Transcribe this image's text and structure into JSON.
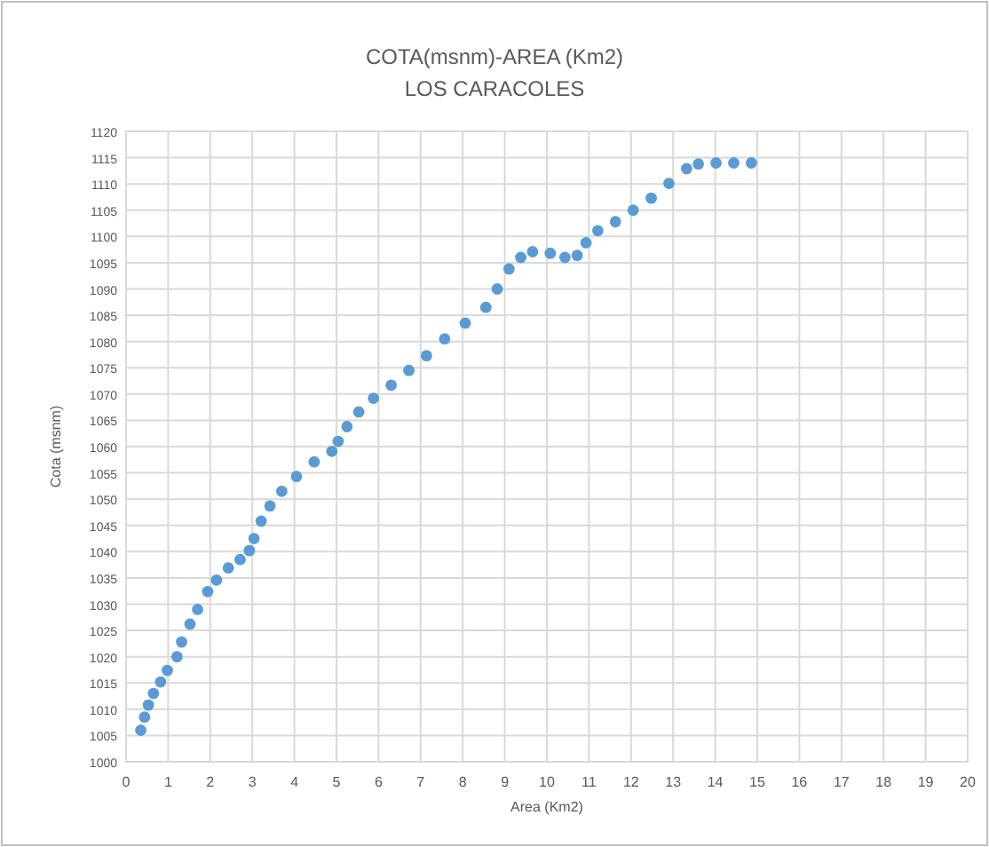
{
  "chart_data": {
    "type": "scatter",
    "title": "COTA(msnm)-AREA (Km2)",
    "subtitle": "LOS CARACOLES",
    "xlabel": "Area (Km2)",
    "ylabel": "Cota (msnm)",
    "xlim": [
      0,
      20
    ],
    "xticks": [
      0,
      1,
      2,
      3,
      4,
      5,
      6,
      7,
      8,
      9,
      10,
      11,
      12,
      13,
      14,
      15,
      16,
      17,
      18,
      19,
      20
    ],
    "ylim": [
      1000,
      1120
    ],
    "yticks": [
      1000,
      1005,
      1010,
      1015,
      1020,
      1025,
      1030,
      1035,
      1040,
      1045,
      1050,
      1055,
      1060,
      1065,
      1070,
      1075,
      1080,
      1085,
      1090,
      1095,
      1100,
      1105,
      1110,
      1115,
      1120
    ],
    "grid": true,
    "marker": "circle",
    "series": [
      {
        "color": "#5b9bd5",
        "x": [
          0.35,
          0.44,
          0.53,
          0.65,
          0.82,
          0.98,
          1.21,
          1.32,
          1.52,
          1.7,
          1.94,
          2.15,
          2.43,
          2.71,
          2.93,
          3.04,
          3.21,
          3.42,
          3.7,
          4.05,
          4.47,
          4.89,
          5.04,
          5.25,
          5.53,
          5.88,
          6.3,
          6.72,
          7.14,
          7.57,
          8.06,
          8.55,
          8.82,
          9.1,
          9.38,
          9.66,
          10.08,
          10.43,
          10.72,
          10.93,
          11.21,
          11.63,
          12.05,
          12.48,
          12.9,
          13.32,
          13.6,
          14.02,
          14.44,
          14.86
        ],
        "values": [
          1006,
          1008.5,
          1010.8,
          1013,
          1015.2,
          1017.4,
          1020,
          1022.8,
          1026.2,
          1029,
          1032.4,
          1034.6,
          1036.9,
          1038.5,
          1040.2,
          1042.5,
          1045.8,
          1048.7,
          1051.5,
          1054.3,
          1057.1,
          1059.1,
          1061,
          1063.8,
          1066.6,
          1069.2,
          1071.7,
          1074.5,
          1077.3,
          1080.5,
          1083.5,
          1086.5,
          1090,
          1093.8,
          1096,
          1097.1,
          1096.8,
          1096,
          1096.4,
          1098.8,
          1101.1,
          1102.8,
          1105,
          1107.3,
          1110.1,
          1112.9,
          1113.8,
          1114,
          1114,
          1114
        ]
      }
    ]
  }
}
